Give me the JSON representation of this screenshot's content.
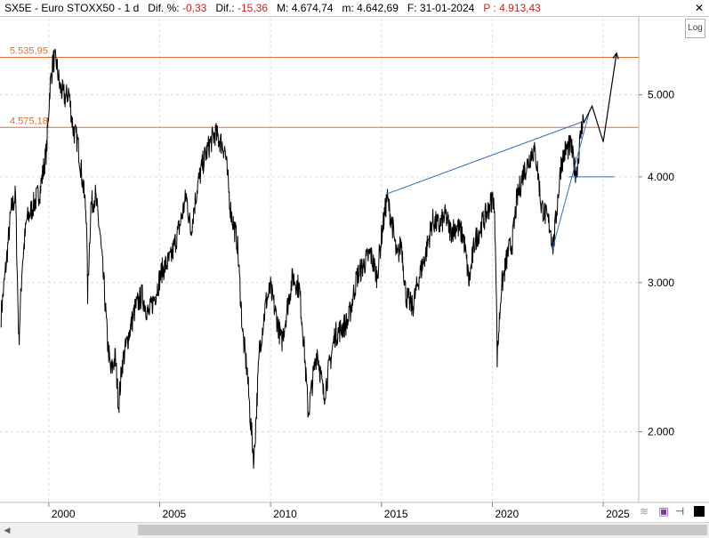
{
  "info_bar": {
    "symbol": "SX5E",
    "name": "Euro STOXX50",
    "timeframe": "1 d",
    "dif_pct_label": "Dif. %:",
    "dif_pct_value": "-0,33",
    "dif_label": "Dif.:",
    "dif_value": "-15,36",
    "max_label": "M:",
    "max_value": "4.674,74",
    "min_label": "m:",
    "min_value": "4.642,69",
    "date_label": "F:",
    "date_value": "31-01-2024",
    "price_label": "P :",
    "price_value": "4.913,43",
    "close_icon": "close-icon"
  },
  "log_button": "Log",
  "toolbar_icons": [
    "chart-style-icon",
    "save-icon",
    "pin-icon",
    "color-swatch-icon"
  ],
  "colors": {
    "price_line": "#000000",
    "level_line": "#e07030",
    "level_text": "#e07030",
    "trendline": "#2f72c0",
    "grid": "#dcdcdc",
    "projection": "#000000",
    "info_negative": "#d02020"
  },
  "chart_data": {
    "type": "line",
    "title": "",
    "xlabel": "",
    "ylabel": "",
    "y_scale": "log",
    "grid": true,
    "xlim": [
      1997.8,
      2026.6
    ],
    "ylim": [
      1650,
      6150
    ],
    "y_ticks": [
      2000,
      3000,
      4000,
      5000
    ],
    "y_tick_labels": [
      "2.000",
      "3.000",
      "4.000",
      "5.000"
    ],
    "x_ticks": [
      2000,
      2005,
      2010,
      2015,
      2020,
      2025
    ],
    "x_tick_labels": [
      "2000",
      "2005",
      "2010",
      "2015",
      "2020",
      "2025"
    ],
    "horizontal_levels": [
      {
        "value": 5535.95,
        "label": "5.535,95"
      },
      {
        "value": 4575.18,
        "label": "4.575,18"
      }
    ],
    "series": [
      {
        "points": [
          [
            1997.85,
            2750
          ],
          [
            1998.1,
            3200
          ],
          [
            1998.3,
            3650
          ],
          [
            1998.5,
            3800
          ],
          [
            1998.65,
            2550
          ],
          [
            1998.8,
            3150
          ],
          [
            1999.0,
            3550
          ],
          [
            1999.3,
            3700
          ],
          [
            1999.6,
            3850
          ],
          [
            1999.9,
            4300
          ],
          [
            2000.05,
            5100
          ],
          [
            2000.2,
            5500
          ],
          [
            2000.35,
            5450
          ],
          [
            2000.5,
            5100
          ],
          [
            2000.75,
            4950
          ],
          [
            2000.9,
            5050
          ],
          [
            2001.1,
            4550
          ],
          [
            2001.3,
            4400
          ],
          [
            2001.5,
            4000
          ],
          [
            2001.7,
            3600
          ],
          [
            2001.75,
            2900
          ],
          [
            2001.9,
            3700
          ],
          [
            2002.1,
            3800
          ],
          [
            2002.3,
            3450
          ],
          [
            2002.5,
            2950
          ],
          [
            2002.65,
            2550
          ],
          [
            2002.8,
            2350
          ],
          [
            2003.0,
            2450
          ],
          [
            2003.15,
            2150
          ],
          [
            2003.3,
            2400
          ],
          [
            2003.6,
            2600
          ],
          [
            2003.9,
            2800
          ],
          [
            2004.2,
            2900
          ],
          [
            2004.5,
            2750
          ],
          [
            2004.8,
            2900
          ],
          [
            2005.1,
            3100
          ],
          [
            2005.5,
            3200
          ],
          [
            2005.9,
            3500
          ],
          [
            2006.2,
            3800
          ],
          [
            2006.4,
            3450
          ],
          [
            2006.7,
            3900
          ],
          [
            2007.0,
            4200
          ],
          [
            2007.3,
            4400
          ],
          [
            2007.5,
            4500
          ],
          [
            2007.75,
            4400
          ],
          [
            2007.95,
            4300
          ],
          [
            2008.2,
            3650
          ],
          [
            2008.5,
            3350
          ],
          [
            2008.75,
            2600
          ],
          [
            2008.95,
            2350
          ],
          [
            2009.1,
            2050
          ],
          [
            2009.25,
            1850
          ],
          [
            2009.5,
            2500
          ],
          [
            2009.8,
            2850
          ],
          [
            2010.0,
            2950
          ],
          [
            2010.3,
            2700
          ],
          [
            2010.5,
            2550
          ],
          [
            2010.8,
            2850
          ],
          [
            2011.0,
            3050
          ],
          [
            2011.3,
            2950
          ],
          [
            2011.5,
            2550
          ],
          [
            2011.7,
            2100
          ],
          [
            2011.9,
            2300
          ],
          [
            2012.1,
            2500
          ],
          [
            2012.4,
            2200
          ],
          [
            2012.6,
            2350
          ],
          [
            2012.9,
            2600
          ],
          [
            2013.2,
            2650
          ],
          [
            2013.5,
            2700
          ],
          [
            2013.9,
            3050
          ],
          [
            2014.2,
            3150
          ],
          [
            2014.5,
            3250
          ],
          [
            2014.8,
            3050
          ],
          [
            2015.0,
            3400
          ],
          [
            2015.25,
            3780
          ],
          [
            2015.5,
            3500
          ],
          [
            2015.7,
            3200
          ],
          [
            2015.9,
            3350
          ],
          [
            2016.1,
            2900
          ],
          [
            2016.4,
            2800
          ],
          [
            2016.7,
            3050
          ],
          [
            2017.0,
            3250
          ],
          [
            2017.3,
            3550
          ],
          [
            2017.6,
            3500
          ],
          [
            2017.9,
            3600
          ],
          [
            2018.1,
            3450
          ],
          [
            2018.4,
            3500
          ],
          [
            2018.7,
            3400
          ],
          [
            2018.95,
            3000
          ],
          [
            2019.2,
            3350
          ],
          [
            2019.5,
            3500
          ],
          [
            2019.8,
            3650
          ],
          [
            2020.05,
            3800
          ],
          [
            2020.15,
            3300
          ],
          [
            2020.22,
            2450
          ],
          [
            2020.4,
            2950
          ],
          [
            2020.7,
            3250
          ],
          [
            2020.9,
            3350
          ],
          [
            2021.1,
            3750
          ],
          [
            2021.4,
            4050
          ],
          [
            2021.6,
            4150
          ],
          [
            2021.8,
            4300
          ],
          [
            2021.95,
            4250
          ],
          [
            2022.1,
            3950
          ],
          [
            2022.2,
            3700
          ],
          [
            2022.4,
            3600
          ],
          [
            2022.6,
            3500
          ],
          [
            2022.75,
            3300
          ],
          [
            2022.9,
            3650
          ],
          [
            2023.1,
            4150
          ],
          [
            2023.3,
            4300
          ],
          [
            2023.55,
            4350
          ],
          [
            2023.7,
            4100
          ],
          [
            2023.8,
            4050
          ],
          [
            2023.95,
            4400
          ],
          [
            2024.08,
            4700
          ],
          [
            2024.12,
            4630
          ]
        ]
      }
    ],
    "trendlines": [
      {
        "from": [
          2015.2,
          3815
        ],
        "to": [
          2024.0,
          4640
        ]
      },
      {
        "from": [
          2022.7,
          3280
        ],
        "to": [
          2024.4,
          4800
        ]
      },
      {
        "from": [
          2023.45,
          4000
        ],
        "to": [
          2025.5,
          4000
        ]
      }
    ],
    "projection": [
      [
        2024.12,
        4630
      ],
      [
        2024.5,
        4850
      ],
      [
        2025.0,
        4400
      ],
      [
        2025.6,
        5600
      ]
    ]
  }
}
